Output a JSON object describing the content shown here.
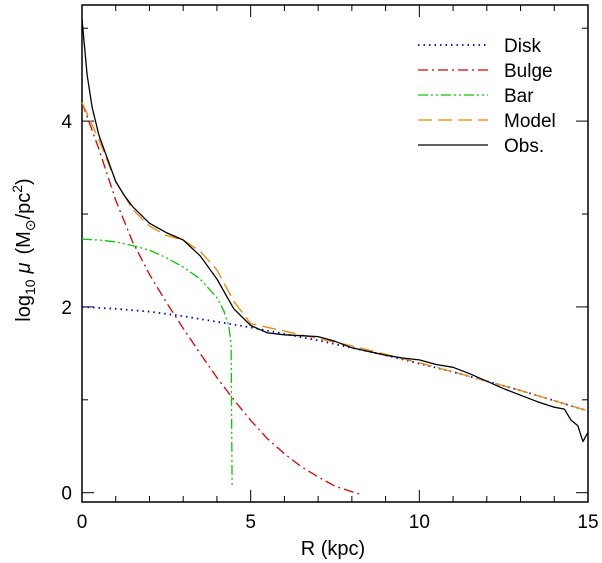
{
  "chart_data": {
    "type": "line",
    "xlabel": "R (kpc)",
    "ylabel": {
      "main": "log",
      "sub": "10",
      "mu": "μ",
      "paren_open": "(M",
      "sun": "⊙",
      "unit": "/pc",
      "sup": "2",
      "paren_close": ")"
    },
    "xlim": [
      0,
      15
    ],
    "ylim": [
      -0.1,
      5.25
    ],
    "xticks": [
      0,
      5,
      10,
      15
    ],
    "yticks": [
      0,
      2,
      4
    ],
    "grid": false,
    "legend_position": "top-right",
    "series": [
      {
        "name": "Disk",
        "color": "#0000cc",
        "dash": "dotted",
        "x": [
          0,
          1,
          2,
          3,
          4,
          5,
          6,
          7,
          8,
          9,
          10,
          11,
          12,
          13,
          14,
          15
        ],
        "y": [
          2.0,
          1.98,
          1.95,
          1.9,
          1.84,
          1.78,
          1.71,
          1.64,
          1.56,
          1.48,
          1.39,
          1.3,
          1.2,
          1.1,
          0.99,
          0.88
        ]
      },
      {
        "name": "Bulge",
        "color": "#dd0000",
        "dash": "dash-dot",
        "x": [
          0,
          0.5,
          1,
          1.5,
          2,
          2.5,
          3,
          3.5,
          4,
          4.5,
          5,
          5.5,
          6,
          6.5,
          7,
          7.5,
          8,
          8.3
        ],
        "y": [
          4.2,
          3.7,
          3.15,
          2.7,
          2.35,
          2.05,
          1.77,
          1.5,
          1.24,
          1.0,
          0.78,
          0.58,
          0.42,
          0.28,
          0.17,
          0.07,
          0.01,
          -0.02
        ]
      },
      {
        "name": "Bar",
        "color": "#00cc00",
        "dash": "dash-dot-dot",
        "x": [
          0,
          0.5,
          1,
          1.5,
          2,
          2.5,
          3,
          3.5,
          4,
          4.2,
          4.35,
          4.42,
          4.45
        ],
        "y": [
          2.73,
          2.72,
          2.7,
          2.66,
          2.61,
          2.53,
          2.43,
          2.3,
          2.1,
          1.96,
          1.8,
          1.6,
          0.08
        ]
      },
      {
        "name": "Model",
        "color": "#ee8800",
        "dash": "long-dash",
        "x": [
          0,
          0.5,
          1,
          1.5,
          2,
          2.5,
          3,
          3.5,
          4,
          4.5,
          5,
          6,
          7,
          8,
          9,
          10,
          11,
          12,
          13,
          14,
          15
        ],
        "y": [
          4.2,
          3.8,
          3.35,
          3.05,
          2.87,
          2.77,
          2.72,
          2.6,
          2.4,
          2.06,
          1.82,
          1.74,
          1.66,
          1.58,
          1.49,
          1.4,
          1.3,
          1.2,
          1.1,
          0.99,
          0.88
        ]
      },
      {
        "name": "Obs.",
        "color": "#000000",
        "dash": "solid",
        "x": [
          0,
          0.15,
          0.3,
          0.5,
          0.75,
          1,
          1.25,
          1.5,
          2,
          2.5,
          3,
          3.5,
          4,
          4.5,
          5,
          5.5,
          6,
          6.5,
          7,
          7.5,
          8,
          8.5,
          9,
          9.5,
          10,
          10.5,
          11,
          11.5,
          12,
          12.5,
          13,
          13.5,
          14,
          14.3,
          14.5,
          14.7,
          14.85,
          15
        ],
        "y": [
          5.1,
          4.5,
          4.15,
          3.85,
          3.6,
          3.35,
          3.2,
          3.08,
          2.9,
          2.8,
          2.72,
          2.55,
          2.3,
          1.98,
          1.8,
          1.72,
          1.7,
          1.69,
          1.68,
          1.63,
          1.56,
          1.52,
          1.48,
          1.45,
          1.43,
          1.38,
          1.35,
          1.28,
          1.2,
          1.12,
          1.05,
          0.98,
          0.92,
          0.9,
          0.78,
          0.72,
          0.55,
          0.65
        ]
      }
    ]
  }
}
